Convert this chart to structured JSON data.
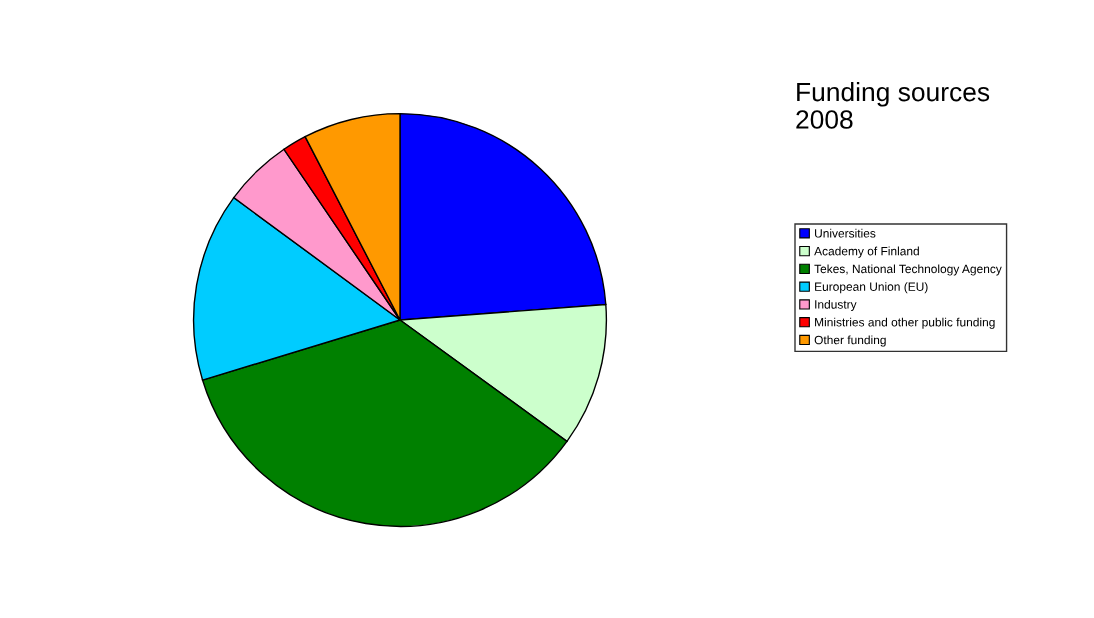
{
  "chart_data": {
    "type": "pie",
    "title": "Funding sources\n2008",
    "categories": [
      "Universities",
      "Academy of Finland",
      "Tekes, National Technology Agency",
      "European Union (EU)",
      "Industry",
      "Ministries and other public funding",
      "Other funding"
    ],
    "values": [
      23.8,
      11.2,
      35.3,
      14.8,
      5.4,
      1.9,
      7.6
    ],
    "colors": [
      "#0000ff",
      "#ccffcc",
      "#008000",
      "#00ccff",
      "#ff99cc",
      "#ff0000",
      "#ff9900"
    ],
    "legend": "right"
  }
}
